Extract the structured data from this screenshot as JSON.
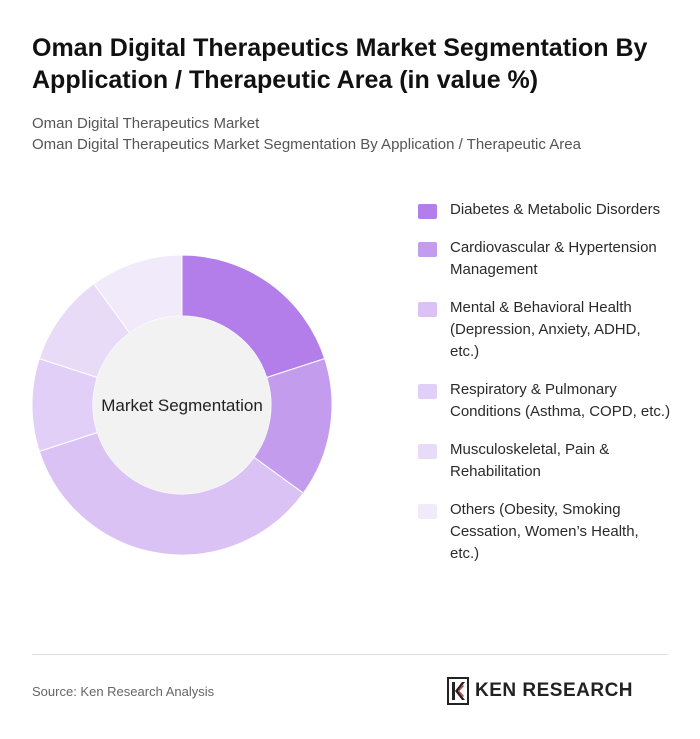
{
  "header": {
    "title": "Oman Digital Therapeutics Market Segmentation By Application / Therapeutic Area (in value %)",
    "subtitle_line1": "Oman Digital Therapeutics Market",
    "subtitle_line2": "Oman Digital Therapeutics Market Segmentation By Application / Therapeutic Area"
  },
  "chart_data": {
    "type": "pie",
    "donut": true,
    "center_label": "Market Segmentation",
    "legend_position": "right",
    "categories": [
      "Diabetes & Metabolic Disorders",
      "Cardiovascular & Hypertension Management",
      "Mental & Behavioral Health (Depression, Anxiety, ADHD, etc.)",
      "Respiratory & Pulmonary Conditions (Asthma, COPD, etc.)",
      "Musculoskeletal, Pain & Rehabilitation",
      "Others (Obesity, Smoking Cessation, Women’s Health, etc.)"
    ],
    "values": [
      20,
      15,
      35,
      10,
      10,
      10
    ],
    "colors": [
      "#b47eea",
      "#c39ced",
      "#dbc2f5",
      "#e2cff7",
      "#e8dbf8",
      "#f1eafb"
    ]
  },
  "footer": {
    "source": "Source: Ken Research Analysis",
    "logo_text": "KEN RESEARCH"
  }
}
